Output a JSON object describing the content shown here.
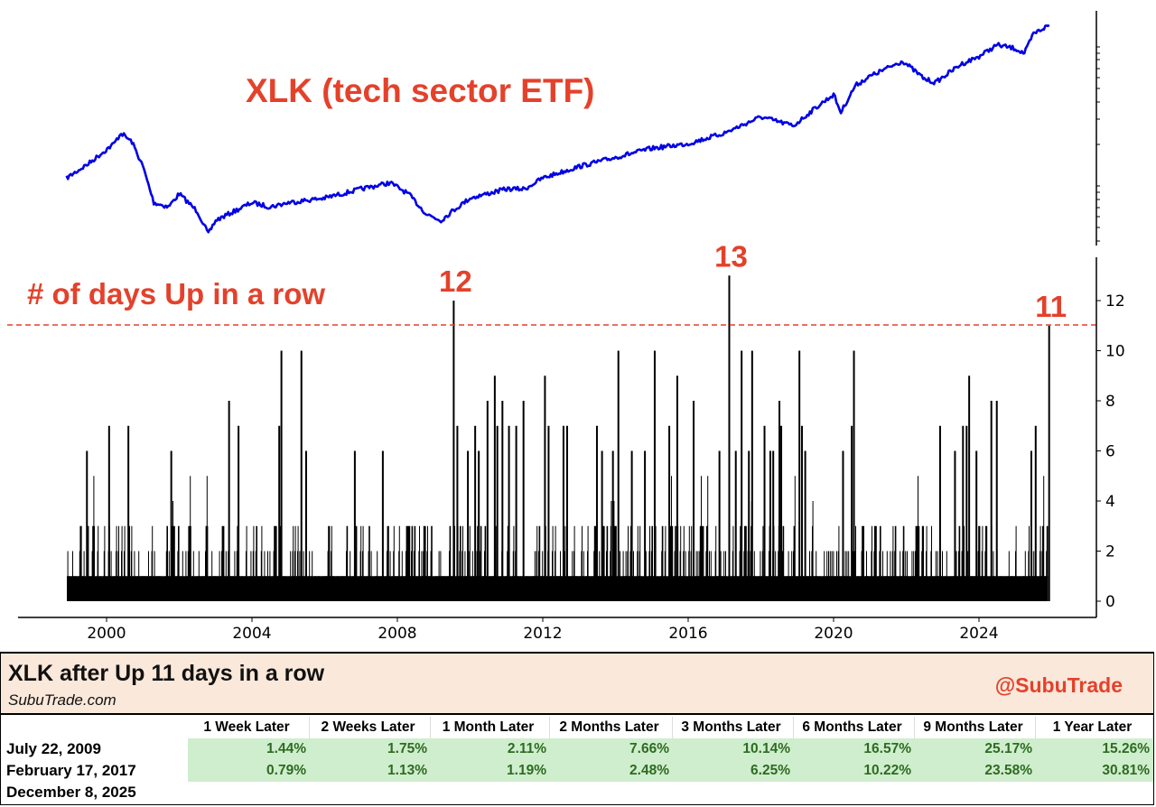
{
  "chart_data": [
    {
      "type": "line",
      "title": "XLK (tech sector ETF)",
      "y_scale": "log",
      "ylim": [
        10,
        420
      ],
      "xlim": [
        1998,
        2026.8
      ],
      "grid": false,
      "line_color": "#0000e6",
      "series": [
        {
          "x": [
            1998.9,
            1999.5,
            2000.2,
            2000.4,
            2000.7,
            2001.0,
            2001.3,
            2001.7,
            2002.0,
            2002.5,
            2002.8,
            2003.0,
            2003.5,
            2004.0,
            2004.5,
            2005.0,
            2006.0,
            2007.0,
            2007.8,
            2008.3,
            2008.8,
            2009.2,
            2009.5,
            2010.0,
            2011.0,
            2011.5,
            2012.0,
            2013.0,
            2014.0,
            2015.0,
            2016.0,
            2017.0,
            2018.0,
            2018.9,
            2019.5,
            2020.0,
            2020.2,
            2020.6,
            2021.0,
            2021.9,
            2022.5,
            2022.8,
            2023.5,
            2024.0,
            2024.5,
            2025.0,
            2025.25,
            2025.5,
            2025.93
          ],
          "y": [
            29.3,
            36.8,
            50.6,
            60,
            52,
            35.2,
            19.8,
            18.5,
            22.8,
            17.2,
            12,
            14.9,
            17.2,
            19.8,
            18.5,
            19.8,
            21.3,
            24.6,
            27.2,
            22.8,
            16.5,
            14.9,
            17.2,
            21.3,
            24.6,
            24.6,
            29.3,
            35.2,
            40.7,
            47,
            50.6,
            60,
            77.6,
            67.3,
            89.4,
            111,
            83.4,
            128,
            148,
            189,
            142,
            134,
            179,
            203,
            244,
            230,
            213,
            291,
            335
          ]
        }
      ]
    },
    {
      "type": "bar",
      "annotation": "# of days Up in a row",
      "xlim": [
        1998,
        2026.8
      ],
      "ylim": [
        0,
        13.5
      ],
      "x_ticks": [
        "2000",
        "2004",
        "2008",
        "2012",
        "2016",
        "2020",
        "2024"
      ],
      "y_ticks": [
        "0",
        "2",
        "4",
        "6",
        "8",
        "10",
        "12"
      ],
      "threshold": 11,
      "threshold_color": "#e4412b",
      "bar_color": "#000000",
      "labeled_peaks": [
        {
          "date": 2009.55,
          "value": 12,
          "label": "12"
        },
        {
          "date": 2017.13,
          "value": 13,
          "label": "13"
        },
        {
          "date": 2025.93,
          "value": 11,
          "label": "11"
        }
      ],
      "peaks": [
        {
          "date": 1999.46,
          "value": 6
        },
        {
          "date": 2000.07,
          "value": 7
        },
        {
          "date": 2000.6,
          "value": 7
        },
        {
          "date": 2001.78,
          "value": 6
        },
        {
          "date": 2003.37,
          "value": 8
        },
        {
          "date": 2003.63,
          "value": 7
        },
        {
          "date": 2004.75,
          "value": 7
        },
        {
          "date": 2004.81,
          "value": 10
        },
        {
          "date": 2005.36,
          "value": 10
        },
        {
          "date": 2005.49,
          "value": 6
        },
        {
          "date": 2006.83,
          "value": 6
        },
        {
          "date": 2007.6,
          "value": 6
        },
        {
          "date": 2009.65,
          "value": 7
        },
        {
          "date": 2009.94,
          "value": 6
        },
        {
          "date": 2010.14,
          "value": 7
        },
        {
          "date": 2010.24,
          "value": 6
        },
        {
          "date": 2010.48,
          "value": 8
        },
        {
          "date": 2010.68,
          "value": 9
        },
        {
          "date": 2010.75,
          "value": 7
        },
        {
          "date": 2010.89,
          "value": 8
        },
        {
          "date": 2011.07,
          "value": 7
        },
        {
          "date": 2011.27,
          "value": 7
        },
        {
          "date": 2011.47,
          "value": 8
        },
        {
          "date": 2012.06,
          "value": 9
        },
        {
          "date": 2012.16,
          "value": 7
        },
        {
          "date": 2012.57,
          "value": 7
        },
        {
          "date": 2012.67,
          "value": 7
        },
        {
          "date": 2013.49,
          "value": 7
        },
        {
          "date": 2013.63,
          "value": 6
        },
        {
          "date": 2013.93,
          "value": 6
        },
        {
          "date": 2014.08,
          "value": 10
        },
        {
          "date": 2014.45,
          "value": 6
        },
        {
          "date": 2014.81,
          "value": 6
        },
        {
          "date": 2015.08,
          "value": 10
        },
        {
          "date": 2015.48,
          "value": 7
        },
        {
          "date": 2015.7,
          "value": 9
        },
        {
          "date": 2016.15,
          "value": 8
        },
        {
          "date": 2016.86,
          "value": 6
        },
        {
          "date": 2017.31,
          "value": 6
        },
        {
          "date": 2017.47,
          "value": 10
        },
        {
          "date": 2017.67,
          "value": 6
        },
        {
          "date": 2017.76,
          "value": 10
        },
        {
          "date": 2018.1,
          "value": 7
        },
        {
          "date": 2018.26,
          "value": 6
        },
        {
          "date": 2018.34,
          "value": 6
        },
        {
          "date": 2018.51,
          "value": 8
        },
        {
          "date": 2018.56,
          "value": 7
        },
        {
          "date": 2019.06,
          "value": 10
        },
        {
          "date": 2019.13,
          "value": 7
        },
        {
          "date": 2019.22,
          "value": 6
        },
        {
          "date": 2020.26,
          "value": 6
        },
        {
          "date": 2020.5,
          "value": 7
        },
        {
          "date": 2020.56,
          "value": 10
        },
        {
          "date": 2022.93,
          "value": 7
        },
        {
          "date": 2023.34,
          "value": 6
        },
        {
          "date": 2023.56,
          "value": 7
        },
        {
          "date": 2023.66,
          "value": 7
        },
        {
          "date": 2023.73,
          "value": 9
        },
        {
          "date": 2023.93,
          "value": 6
        },
        {
          "date": 2024.34,
          "value": 8
        },
        {
          "date": 2024.49,
          "value": 8
        },
        {
          "date": 2025.44,
          "value": 6
        },
        {
          "date": 2025.56,
          "value": 7
        }
      ]
    }
  ],
  "table": {
    "title": "XLK after Up 11 days in a row",
    "subtitle": "SubuTrade.com",
    "handle": "@SubuTrade",
    "columns": [
      "1 Week Later",
      "2 Weeks Later",
      "1 Month Later",
      "2 Months Later",
      "3 Months Later",
      "6 Months Later",
      "9 Months Later",
      "1 Year Later"
    ],
    "rows": [
      {
        "date": "July 22, 2009",
        "values": [
          "1.44%",
          "1.75%",
          "2.11%",
          "7.66%",
          "10.14%",
          "16.57%",
          "25.17%",
          "15.26%"
        ]
      },
      {
        "date": "February 17, 2017",
        "values": [
          "0.79%",
          "1.13%",
          "1.19%",
          "2.48%",
          "6.25%",
          "10.22%",
          "23.58%",
          "30.81%"
        ]
      },
      {
        "date": "December 8, 2025",
        "values": []
      }
    ],
    "positive_bg": "#cfeecd",
    "positive_text": "#2e6b22"
  }
}
